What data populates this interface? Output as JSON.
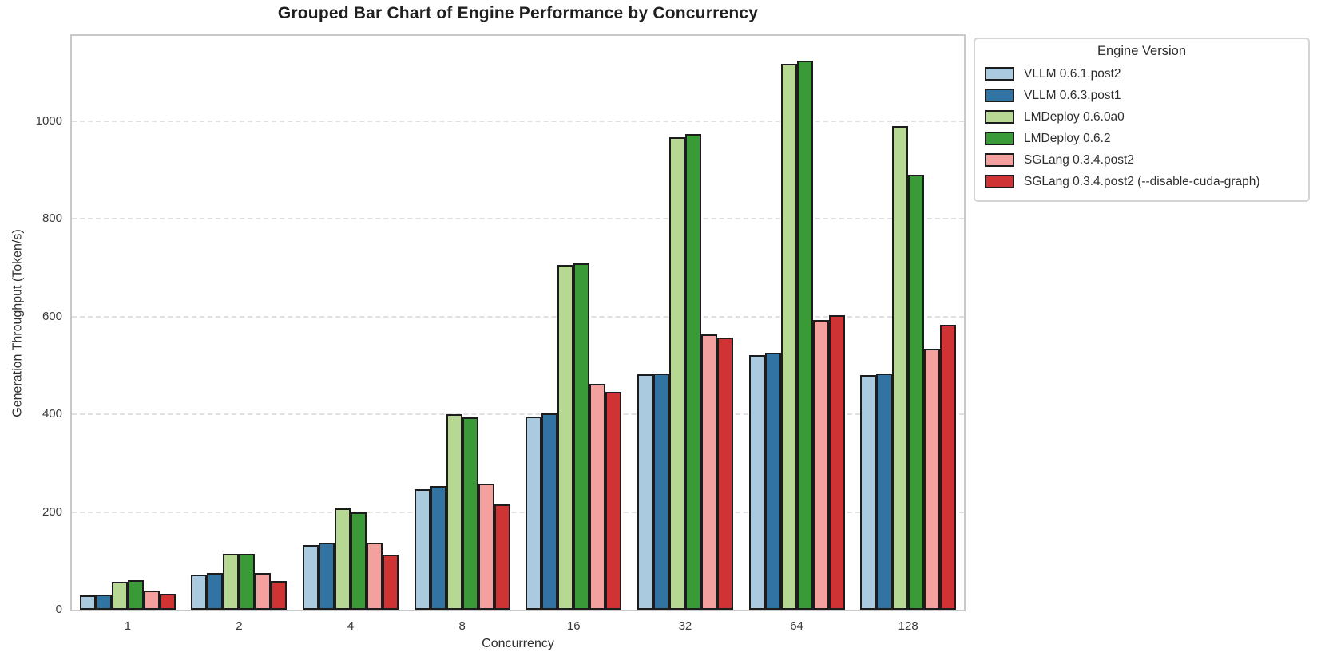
{
  "chart_data": {
    "type": "bar",
    "title": "Grouped Bar Chart of Engine Performance by Concurrency",
    "xlabel": "Concurrency",
    "ylabel": "Generation Throughput (Token/s)",
    "legend_title": "Engine Version",
    "legend_position": "upper right, outside plot area",
    "grid": "horizontal dashed gridlines on",
    "categories": [
      "1",
      "2",
      "4",
      "8",
      "16",
      "32",
      "64",
      "128"
    ],
    "yticks": [
      0,
      200,
      400,
      600,
      800,
      1000
    ],
    "ylim": [
      0,
      1175
    ],
    "bar_edge_color": "#1c1c1c",
    "series": [
      {
        "name": "VLLM 0.6.1.post2",
        "color": "#aacbdf",
        "values": [
          30,
          72,
          133,
          247,
          395,
          482,
          521,
          481
        ]
      },
      {
        "name": "VLLM 0.6.3.post1",
        "color": "#3173a3",
        "values": [
          31,
          75,
          138,
          253,
          402,
          484,
          527,
          484
        ]
      },
      {
        "name": "LMDeploy 0.6.0a0",
        "color": "#b6d893",
        "values": [
          57,
          114,
          207,
          401,
          706,
          968,
          1117,
          990
        ]
      },
      {
        "name": "LMDeploy 0.6.2",
        "color": "#3b9a38",
        "values": [
          60,
          114,
          200,
          394,
          710,
          974,
          1124,
          891
        ]
      },
      {
        "name": "SGLang 0.3.4.post2",
        "color": "#f3a09e",
        "values": [
          39,
          75,
          138,
          259,
          463,
          563,
          594,
          535
        ]
      },
      {
        "name": "SGLang 0.3.4.post2 (--disable-cuda-graph)",
        "color": "#cf3334",
        "values": [
          33,
          59,
          112,
          216,
          446,
          558,
          603,
          583
        ]
      }
    ]
  }
}
